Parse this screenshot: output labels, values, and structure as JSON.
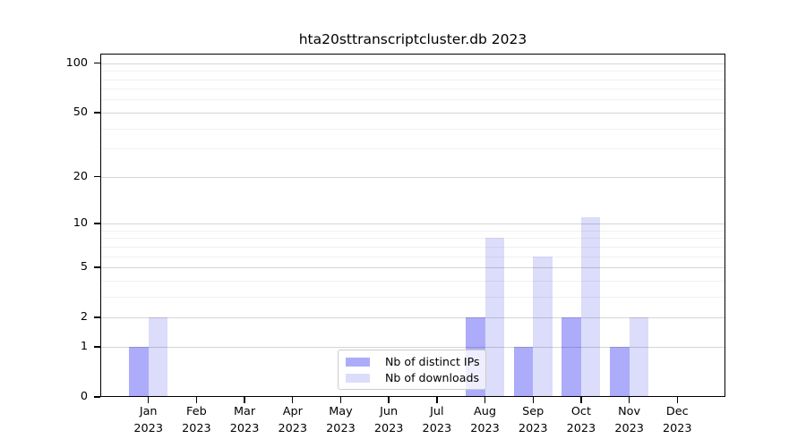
{
  "chart_data": {
    "type": "bar",
    "title": "hta20sttranscriptcluster.db 2023",
    "categories": [
      "Jan",
      "Feb",
      "Mar",
      "Apr",
      "May",
      "Jun",
      "Jul",
      "Aug",
      "Sep",
      "Oct",
      "Nov",
      "Dec"
    ],
    "year_label": "2023",
    "series": [
      {
        "name": "Nb of distinct IPs",
        "color": "#acacfa",
        "values": [
          1,
          0,
          0,
          0,
          0,
          0,
          0,
          2,
          1,
          2,
          1,
          0
        ]
      },
      {
        "name": "Nb of downloads",
        "color": "#dcddfa",
        "values": [
          2,
          0,
          0,
          0,
          0,
          0,
          0,
          8,
          6,
          11,
          2,
          0
        ]
      }
    ],
    "xlabel": "",
    "ylabel": "",
    "yscale": "log1p",
    "yticks": [
      0,
      1,
      2,
      5,
      10,
      20,
      50,
      100
    ],
    "minor_yticks": [
      3,
      4,
      6,
      7,
      8,
      9,
      30,
      40,
      60,
      70,
      80,
      90
    ],
    "ylim": [
      0,
      115
    ],
    "grid": "horizontal",
    "legend_position": "lower center"
  }
}
